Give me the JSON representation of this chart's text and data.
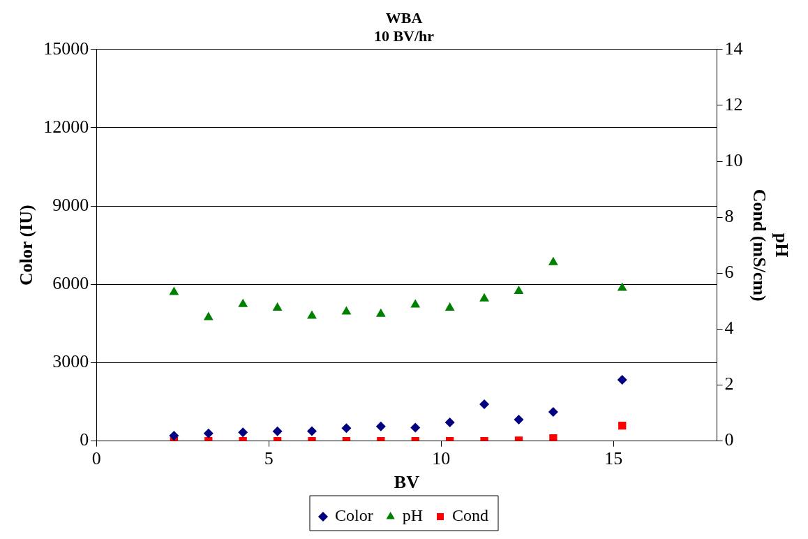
{
  "chart_data": {
    "type": "scatter",
    "title": "WBA\n10 BV/hr",
    "xlabel": "BV",
    "ylabel": "Color (IU)",
    "y2label": "pH\nCond (mS/cm)",
    "x": [
      2.25,
      3.25,
      4.25,
      5.25,
      6.25,
      7.25,
      8.25,
      9.25,
      10.25,
      11.25,
      12.25,
      13.25,
      15.25
    ],
    "series": [
      {
        "name": "Color",
        "color": "#000080",
        "marker": "diamond",
        "values": [
          200,
          290,
          330,
          370,
          380,
          490,
          560,
          510,
          710,
          1410,
          820,
          1110,
          2340
        ]
      },
      {
        "name": "pH",
        "color": "#008000",
        "marker": "triangle",
        "axis": "y2",
        "values": [
          5.32,
          4.42,
          4.89,
          4.76,
          4.47,
          4.62,
          4.54,
          4.87,
          4.76,
          5.09,
          5.36,
          6.39,
          5.47
        ]
      },
      {
        "name": "Cond",
        "color": "#ff0000",
        "marker": "square",
        "axis": "y2",
        "values": [
          0,
          0,
          0,
          0,
          0,
          0,
          0,
          0,
          0,
          0,
          0.02,
          0.1,
          0.55
        ]
      }
    ],
    "xlim": [
      0,
      18
    ],
    "xticks": [
      0,
      5,
      10,
      15
    ],
    "ylim": [
      0,
      15000
    ],
    "yticks": [
      0,
      3000,
      6000,
      9000,
      12000,
      15000
    ],
    "y2lim": [
      0,
      14
    ],
    "y2ticks": [
      0,
      2,
      4,
      6,
      8,
      10,
      12,
      14
    ],
    "grid": "y",
    "legend": "bottom"
  }
}
